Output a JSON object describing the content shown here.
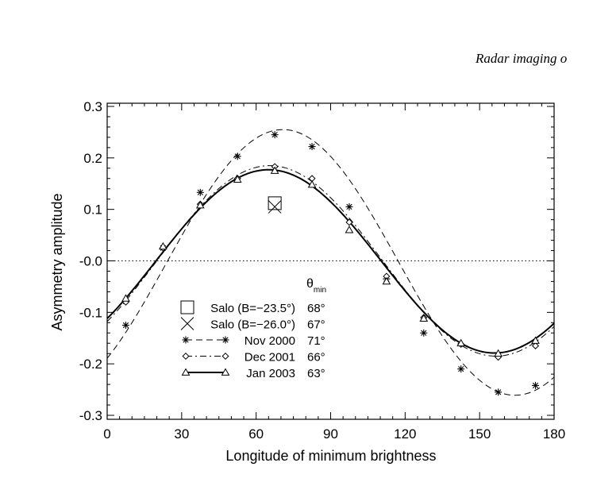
{
  "header_text": "Radar imaging o",
  "chart_data": {
    "type": "line",
    "xlabel": "Longitude of minimum brightness",
    "ylabel": "Asymmetry amplitude",
    "xlim": [
      0,
      180
    ],
    "ylim": [
      -0.32,
      0.3
    ],
    "xticks": [
      0,
      30,
      60,
      90,
      120,
      150,
      180
    ],
    "xtick_labels": [
      "0",
      "30",
      "60",
      "90",
      "120",
      "150",
      "180"
    ],
    "yticks": [
      -0.3,
      -0.2,
      -0.1,
      0.0,
      0.1,
      0.2,
      0.3
    ],
    "ytick_labels": [
      "-0.3",
      "-0.2",
      "-0.1",
      "-0.0",
      "0.1",
      "0.2",
      "0.3"
    ],
    "zero_line": {
      "y": 0.0,
      "style": "dotted"
    },
    "legend_position": "lower-left",
    "legend_header": "θmin",
    "legend_header_main": "θ",
    "legend_header_sub": "min",
    "series": [
      {
        "name": "Nov 2000",
        "theta_min": "71°",
        "marker": "asterisk",
        "line": "dashed",
        "x": [
          7.5,
          22.5,
          37.5,
          52.5,
          67.5,
          82.5,
          97.5,
          112.5,
          127.5,
          142.5,
          157.5,
          172.5
        ],
        "y": [
          -0.125,
          0.025,
          0.133,
          0.203,
          0.245,
          0.222,
          0.105,
          -0.035,
          -0.14,
          -0.21,
          -0.255,
          -0.242
        ],
        "curve": {
          "amp": 0.258,
          "period": 187,
          "x0": 24,
          "offset": -0.003
        }
      },
      {
        "name": "Dec 2001",
        "theta_min": "66°",
        "marker": "diamond",
        "line": "dash-dot",
        "x": [
          7.5,
          22.5,
          37.5,
          52.5,
          67.5,
          82.5,
          97.5,
          112.5,
          127.5,
          142.5,
          157.5,
          172.5
        ],
        "y": [
          -0.08,
          0.025,
          0.11,
          0.16,
          0.183,
          0.16,
          0.075,
          -0.03,
          -0.11,
          -0.162,
          -0.187,
          -0.165
        ],
        "curve": {
          "amp": 0.185,
          "period": 182,
          "x0": 20,
          "offset": 0.0
        }
      },
      {
        "name": "Jan 2003",
        "theta_min": "63°",
        "marker": "triangle",
        "line": "solid",
        "x": [
          7.5,
          22.5,
          37.5,
          52.5,
          67.5,
          82.5,
          97.5,
          112.5,
          127.5,
          142.5,
          157.5,
          172.5
        ],
        "y": [
          -0.073,
          0.028,
          0.108,
          0.158,
          0.175,
          0.148,
          0.06,
          -0.04,
          -0.112,
          -0.16,
          -0.18,
          -0.155
        ],
        "curve": {
          "amp": 0.178,
          "period": 182,
          "x0": 19.5,
          "offset": -0.001
        }
      },
      {
        "name": "Salo (B=−23.5°)",
        "theta_min": "68°",
        "marker": "square",
        "x": [
          67.5
        ],
        "y": [
          0.112
        ]
      },
      {
        "name": "Salo (B=−26.0°)",
        "theta_min": "67°",
        "marker": "cross",
        "x": [
          67.5
        ],
        "y": [
          0.105
        ]
      }
    ],
    "legend_order": [
      3,
      4,
      0,
      1,
      2
    ]
  }
}
